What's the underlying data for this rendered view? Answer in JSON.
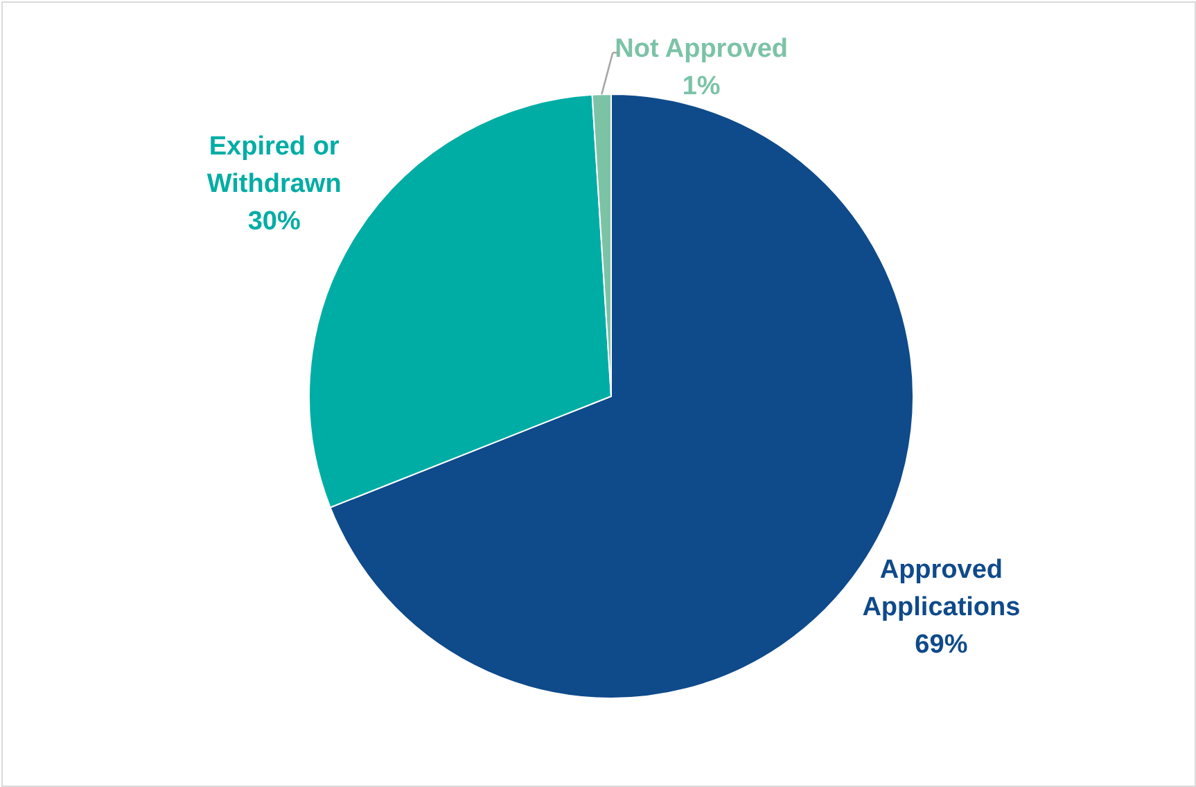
{
  "chart_data": {
    "type": "pie",
    "categories": [
      "Approved Applications",
      "Expired or Withdrawn",
      "Not Approved"
    ],
    "values": [
      69,
      30,
      1
    ],
    "colors": [
      "#0f4a8a",
      "#00ada5",
      "#7cc3a6"
    ],
    "value_labels": [
      "69%",
      "30%",
      "1%"
    ]
  }
}
